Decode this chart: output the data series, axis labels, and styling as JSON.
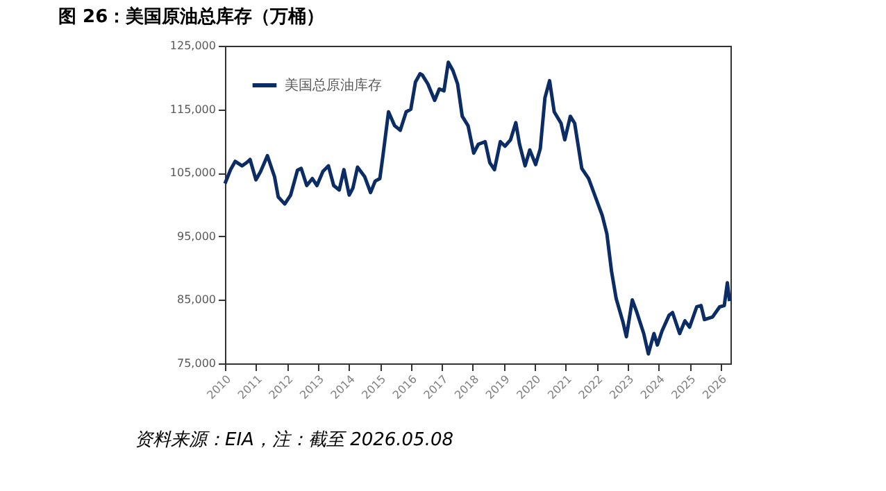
{
  "chart_data": {
    "type": "line",
    "title": "图 26：美国原油总库存（万桶）",
    "x": [
      2010.0,
      2010.18,
      2010.33,
      2010.55,
      2010.7,
      2010.81,
      2011.0,
      2011.15,
      2011.37,
      2011.6,
      2011.72,
      2011.93,
      2012.12,
      2012.34,
      2012.46,
      2012.64,
      2012.82,
      2012.97,
      2013.16,
      2013.34,
      2013.51,
      2013.69,
      2013.84,
      2014.01,
      2014.13,
      2014.28,
      2014.51,
      2014.7,
      2014.85,
      2015.0,
      2015.1,
      2015.28,
      2015.48,
      2015.66,
      2015.85,
      2016.0,
      2016.15,
      2016.3,
      2016.37,
      2016.55,
      2016.77,
      2016.92,
      2017.07,
      2017.21,
      2017.36,
      2017.51,
      2017.66,
      2017.85,
      2018.03,
      2018.18,
      2018.4,
      2018.55,
      2018.7,
      2018.89,
      2019.04,
      2019.22,
      2019.39,
      2019.51,
      2019.69,
      2019.84,
      2020.03,
      2020.18,
      2020.33,
      2020.48,
      2020.63,
      2020.85,
      2020.97,
      2021.15,
      2021.29,
      2021.52,
      2021.74,
      2021.96,
      2022.18,
      2022.33,
      2022.48,
      2022.63,
      2022.85,
      2022.96,
      2023.15,
      2023.3,
      2023.52,
      2023.67,
      2023.85,
      2023.96,
      2024.11,
      2024.34,
      2024.45,
      2024.68,
      2024.85,
      2025.0,
      2025.23,
      2025.37,
      2025.48,
      2025.74,
      2025.97,
      2026.12,
      2026.22,
      2026.29
    ],
    "series": [
      {
        "name": "美国总原油库存",
        "color": "#0b2c64",
        "values": [
          103300,
          105500,
          106800,
          106100,
          106600,
          107100,
          103900,
          105200,
          107700,
          104400,
          101200,
          100100,
          101500,
          105400,
          105700,
          103000,
          104100,
          103000,
          105200,
          106100,
          103000,
          102300,
          105500,
          101500,
          102600,
          105900,
          104400,
          101900,
          103700,
          104100,
          107700,
          114600,
          112400,
          111700,
          114600,
          115000,
          119300,
          120600,
          120400,
          119000,
          116400,
          118200,
          117900,
          122400,
          121100,
          119000,
          113900,
          112400,
          108100,
          109500,
          109900,
          106600,
          105500,
          109900,
          109200,
          110200,
          112900,
          109500,
          106100,
          108600,
          106300,
          108800,
          116800,
          119500,
          114600,
          112800,
          110200,
          113900,
          112800,
          105700,
          104100,
          101200,
          98300,
          95400,
          89500,
          85200,
          81500,
          79200,
          85000,
          83000,
          79700,
          76500,
          79700,
          77900,
          80100,
          82600,
          83000,
          79700,
          81700,
          80700,
          83900,
          84100,
          81900,
          82300,
          83900,
          84100,
          87700,
          84800
        ]
      }
    ],
    "xlim": [
      2010,
      2026.32
    ],
    "xticks": [
      2010,
      2011,
      2012,
      2013,
      2014,
      2015,
      2016,
      2017,
      2018,
      2019,
      2020,
      2021,
      2022,
      2023,
      2024,
      2025,
      2026
    ],
    "ylim": [
      75000,
      125000
    ],
    "yticks": [
      {
        "value": 75000,
        "label": "75,000"
      },
      {
        "value": 85000,
        "label": "85,000"
      },
      {
        "value": 95000,
        "label": "95,000"
      },
      {
        "value": 105000,
        "label": "105,000"
      },
      {
        "value": 115000,
        "label": "115,000"
      },
      {
        "value": 125000,
        "label": "125,000"
      }
    ],
    "grid": false,
    "legend": "top left",
    "line_style": "solid",
    "marker": "none",
    "annotations": [
      "资料来源：EIA，注：截至 2026.05.08"
    ]
  }
}
